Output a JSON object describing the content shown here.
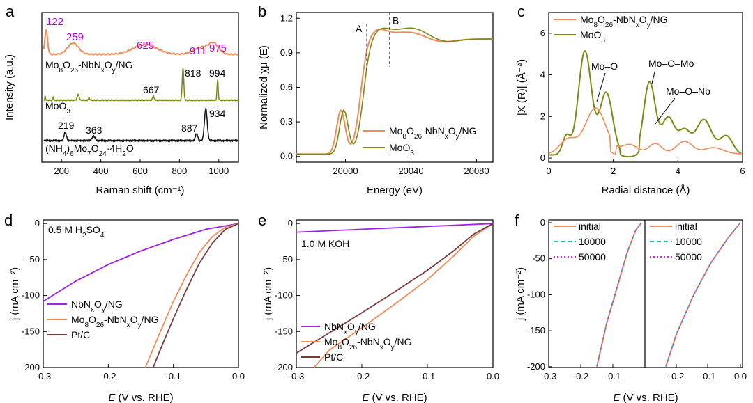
{
  "colors": {
    "orange": "#f08c5a",
    "olive": "#7d8a12",
    "black": "#111111",
    "purple": "#a020f0",
    "brown": "#7a3b3b",
    "teal": "#20c0b0",
    "magenta": "#c030d0",
    "annot_purple": "#b000e0"
  },
  "chart_data": [
    {
      "panel": "a",
      "type": "line",
      "xlabel": "Raman shift (cm⁻¹)",
      "ylabel": "Intensity (a.u.)",
      "xlim": [
        100,
        1100
      ],
      "xticks": [
        "200",
        "400",
        "600",
        "800",
        "1000"
      ],
      "series": [
        {
          "name": "Mo₈O₂₆-NbNₓOᵧ/NG",
          "label": "Mo8O26-NbNxOy/NG",
          "color": "orange",
          "peaks": [
            "122",
            "259",
            "625",
            "911",
            "975"
          ]
        },
        {
          "name": "MoO₃",
          "label": "MoO3",
          "color": "olive",
          "peaks": [
            "667",
            "818",
            "994"
          ]
        },
        {
          "name": "(NH₄)₆Mo₇O₂₄·4H₂O",
          "label": "(NH4)6Mo7O24·4H2O",
          "color": "black",
          "peaks": [
            "219",
            "363",
            "887",
            "934"
          ]
        }
      ]
    },
    {
      "panel": "b",
      "type": "line",
      "xlabel": "Energy (eV)",
      "ylabel": "Normalized χμ (E)",
      "xlim": [
        19970,
        20090
      ],
      "ylim": [
        -0.05,
        1.25
      ],
      "xticks": [
        "20000",
        "20040",
        "20080"
      ],
      "yticks": [
        "0.0",
        "0.3",
        "0.6",
        "0.9",
        "1.2"
      ],
      "markers": [
        "A",
        "B"
      ],
      "series": [
        {
          "name": "Mo₈O₂₆-NbNₓOᵧ/NG",
          "color": "orange"
        },
        {
          "name": "MoO₃",
          "color": "olive"
        }
      ]
    },
    {
      "panel": "c",
      "type": "line",
      "xlabel": "Radial distance (Å)",
      "ylabel": "|X (R)| (Å⁻⁴)",
      "xlim": [
        0,
        6
      ],
      "ylim": [
        -0.2,
        7
      ],
      "xticks": [
        "0",
        "2",
        "4",
        "6"
      ],
      "yticks": [
        "0",
        "2",
        "4",
        "6"
      ],
      "annotations": [
        "Mo–O",
        "Mo–O–Mo",
        "Mo–O–Nb"
      ],
      "series": [
        {
          "name": "Mo₈O₂₆-NbNₓOᵧ/NG",
          "color": "orange"
        },
        {
          "name": "MoO₃",
          "color": "olive"
        }
      ]
    },
    {
      "panel": "d",
      "type": "line",
      "xlabel": "E (V vs. RHE)",
      "ylabel": "j (mA cm⁻²)",
      "xlim": [
        -0.3,
        0
      ],
      "ylim": [
        -200,
        5
      ],
      "xticks": [
        "-0.3",
        "-0.2",
        "-0.1",
        "0.0"
      ],
      "yticks": [
        "0",
        "-50",
        "-100",
        "-150",
        "-200"
      ],
      "condition": "0.5 M H₂SO₄",
      "series": [
        {
          "name": "NbNₓOᵧ/NG",
          "color": "purple",
          "points": [
            [
              0,
              0
            ],
            [
              -0.05,
              -8
            ],
            [
              -0.1,
              -22
            ],
            [
              -0.15,
              -38
            ],
            [
              -0.2,
              -57
            ],
            [
              -0.25,
              -80
            ],
            [
              -0.3,
              -108
            ]
          ]
        },
        {
          "name": "Mo₈O₂₆-NbNₓOᵧ/NG",
          "color": "orange",
          "points": [
            [
              0,
              0
            ],
            [
              -0.02,
              -5
            ],
            [
              -0.04,
              -18
            ],
            [
              -0.06,
              -40
            ],
            [
              -0.08,
              -72
            ],
            [
              -0.1,
              -108
            ],
            [
              -0.12,
              -150
            ],
            [
              -0.143,
              -200
            ]
          ]
        },
        {
          "name": "Pt/C",
          "color": "brown",
          "points": [
            [
              0,
              0
            ],
            [
              -0.02,
              -8
            ],
            [
              -0.04,
              -27
            ],
            [
              -0.06,
              -55
            ],
            [
              -0.08,
              -92
            ],
            [
              -0.1,
              -132
            ],
            [
              -0.12,
              -175
            ],
            [
              -0.131,
              -200
            ]
          ]
        }
      ]
    },
    {
      "panel": "e",
      "type": "line",
      "xlabel": "E (V vs. RHE)",
      "ylabel": "j (mA cm⁻²)",
      "xlim": [
        -0.3,
        0
      ],
      "ylim": [
        -200,
        5
      ],
      "xticks": [
        "-0.3",
        "-0.2",
        "-0.1",
        "0.0"
      ],
      "yticks": [
        "0",
        "-50",
        "-100",
        "-150",
        "-200"
      ],
      "condition": "1.0 M KOH",
      "series": [
        {
          "name": "NbNₓOᵧ/NG",
          "color": "purple",
          "points": [
            [
              0,
              0
            ],
            [
              -0.1,
              -4
            ],
            [
              -0.2,
              -8
            ],
            [
              -0.3,
              -12
            ]
          ]
        },
        {
          "name": "Mo₈O₂₆-NbNₓOᵧ/NG",
          "color": "orange",
          "points": [
            [
              0,
              0
            ],
            [
              -0.03,
              -18
            ],
            [
              -0.06,
              -45
            ],
            [
              -0.1,
              -78
            ],
            [
              -0.15,
              -112
            ],
            [
              -0.2,
              -145
            ],
            [
              -0.25,
              -176
            ],
            [
              -0.273,
              -200
            ]
          ]
        },
        {
          "name": "Pt/C",
          "color": "brown",
          "points": [
            [
              0,
              0
            ],
            [
              -0.03,
              -15
            ],
            [
              -0.06,
              -38
            ],
            [
              -0.1,
              -65
            ],
            [
              -0.15,
              -95
            ],
            [
              -0.2,
              -124
            ],
            [
              -0.25,
              -152
            ],
            [
              -0.3,
              -180
            ]
          ]
        }
      ]
    },
    {
      "panel": "f",
      "type": "line",
      "xlabel": "E (V vs. RHE)",
      "ylabel": "j (mA cm⁻²)",
      "xticks": [
        "-0.3",
        "-0.2",
        "-0.1",
        "-0.2",
        "-0.1",
        "0.0"
      ],
      "yticks": [
        "0",
        "-50",
        "-100",
        "-150",
        "-200"
      ],
      "legend": [
        "initial",
        "10000",
        "50000"
      ]
    }
  ]
}
